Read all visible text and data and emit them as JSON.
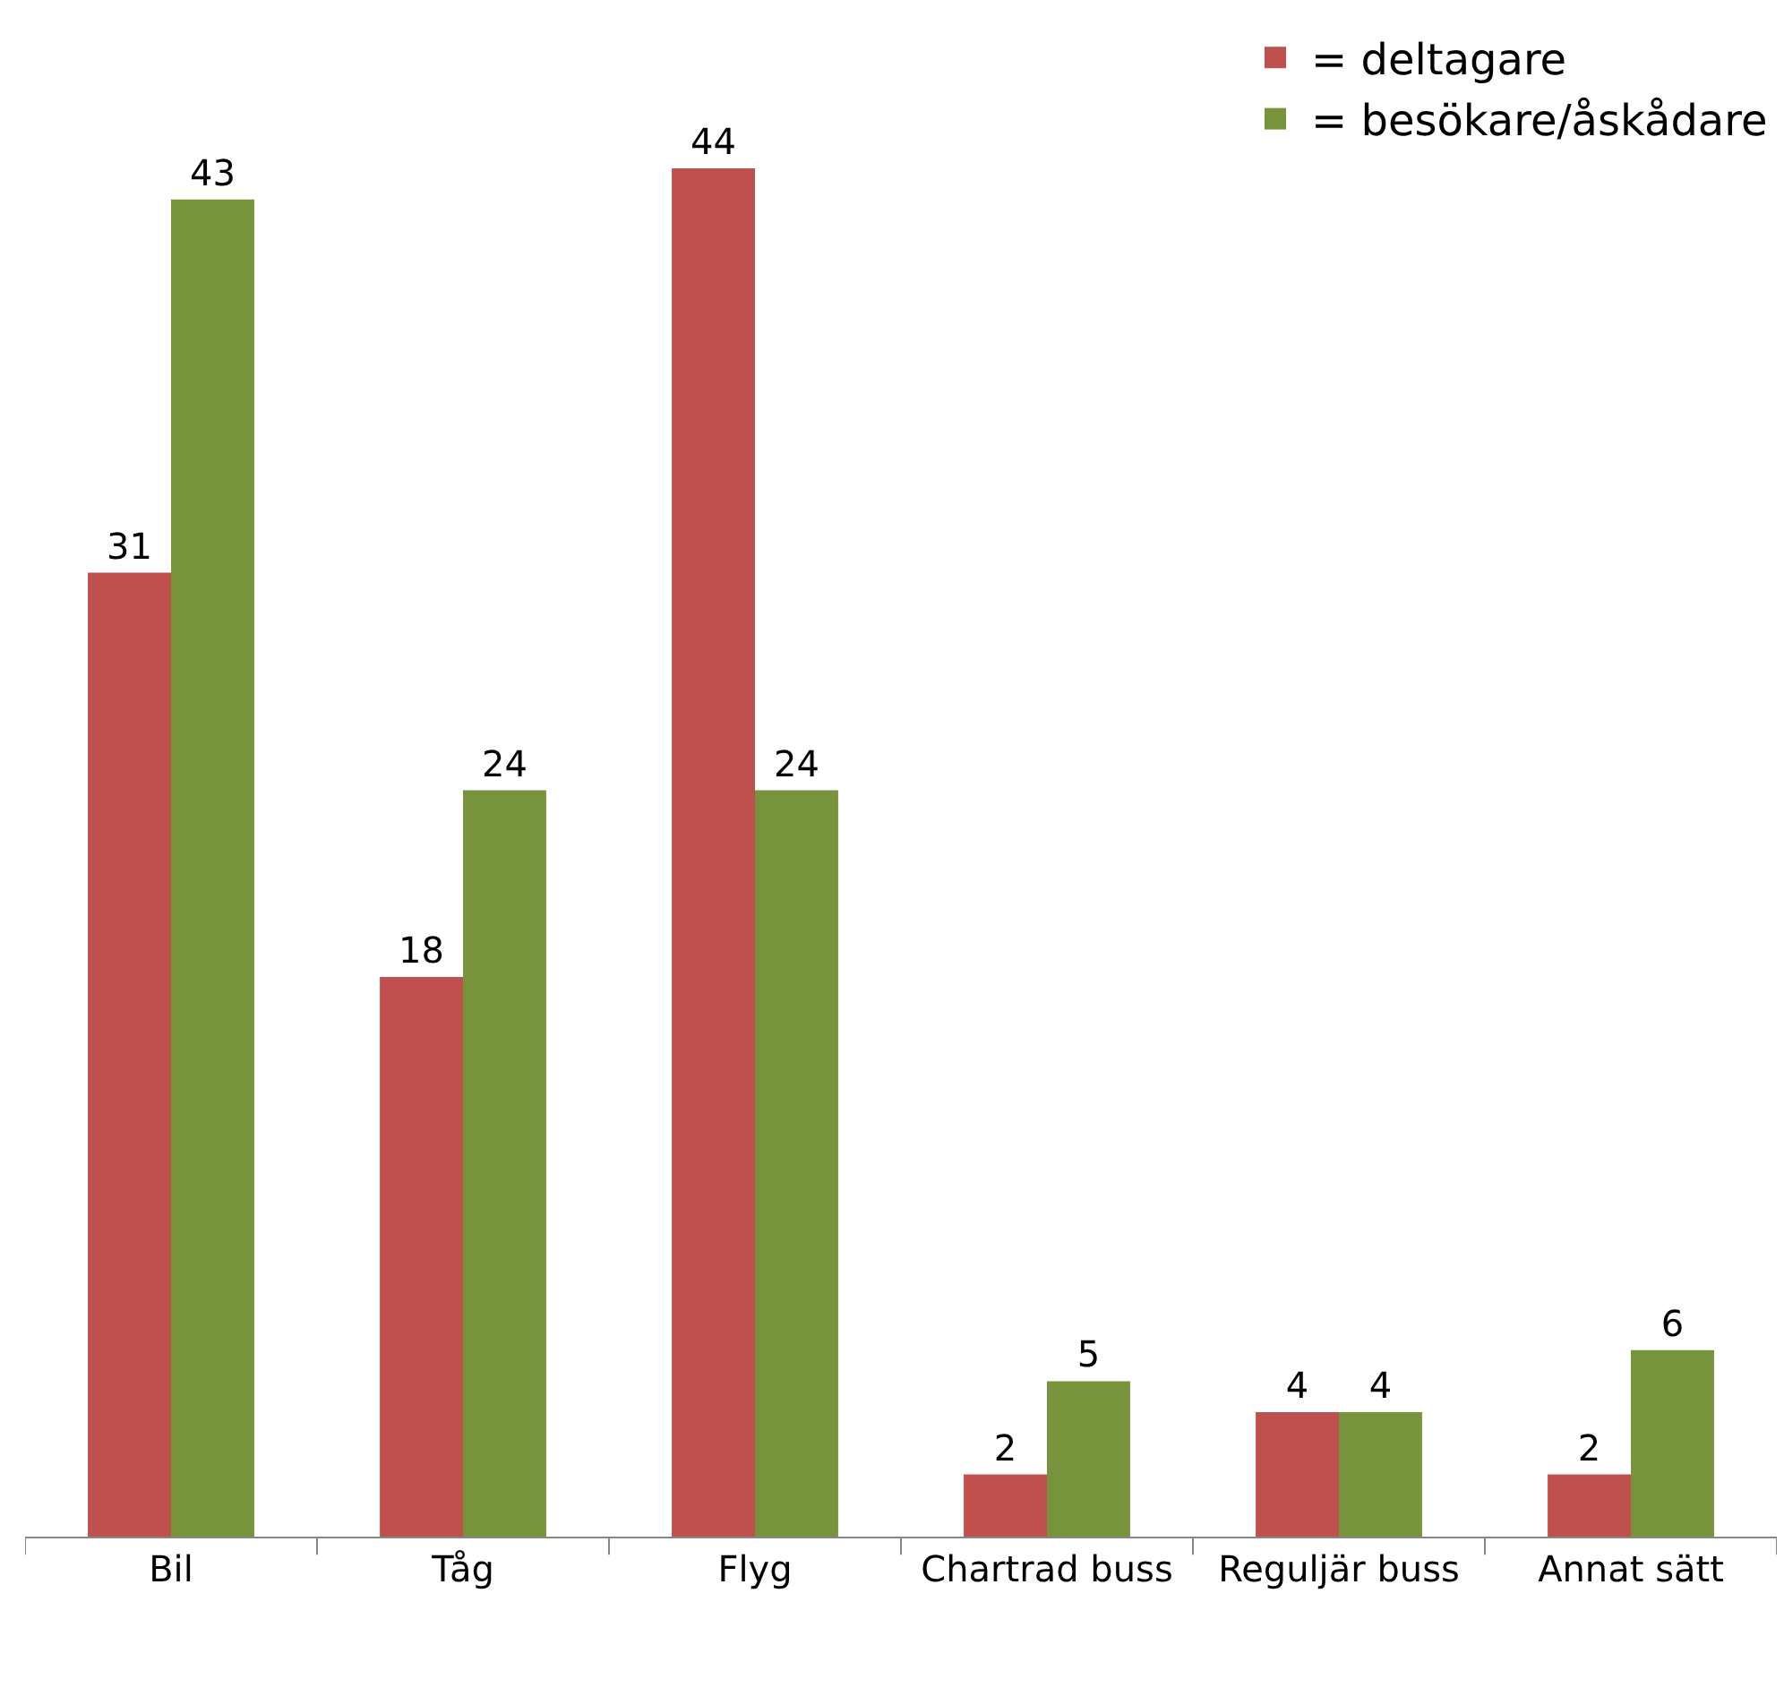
{
  "chart_data": {
    "type": "bar",
    "categories": [
      "Bil",
      "Tåg",
      "Flyg",
      "Chartrad buss",
      "Reguljär buss",
      "Annat sätt"
    ],
    "series": [
      {
        "name": "= deltagare",
        "color": "#c0504d",
        "values": [
          31,
          18,
          44,
          2,
          4,
          2
        ]
      },
      {
        "name": "= besökare/åskådare",
        "color": "#77933c",
        "values": [
          43,
          24,
          24,
          5,
          4,
          6
        ]
      }
    ],
    "data_labels": true,
    "legend": "top right"
  }
}
